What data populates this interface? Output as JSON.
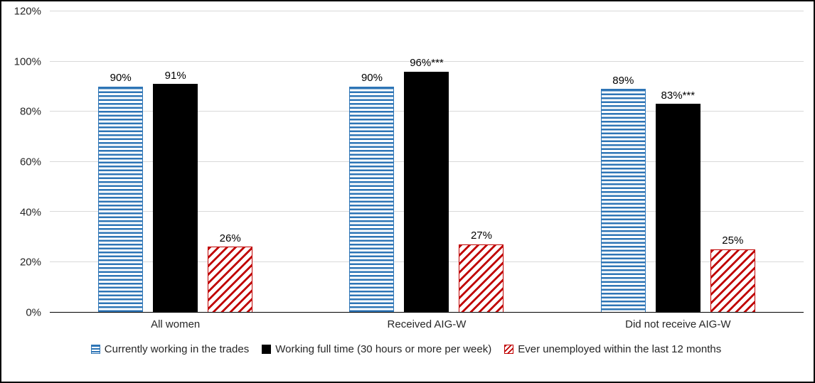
{
  "chart_data": {
    "type": "bar",
    "categories": [
      "All women",
      "Received AIG-W",
      "Did not receive AIG-W"
    ],
    "series": [
      {
        "name": "Currently working in the trades",
        "values": [
          90,
          90,
          89
        ],
        "labels": [
          "90%",
          "90%",
          "89%"
        ],
        "style": "blue-stripes",
        "color": "#2E75B6",
        "pattern": "horizontal-stripes"
      },
      {
        "name": "Working full time (30 hours or more per week)",
        "values": [
          91,
          96,
          83
        ],
        "labels": [
          "91%",
          "96%***",
          "83%***"
        ],
        "style": "black-solid",
        "color": "#000000",
        "pattern": "solid"
      },
      {
        "name": "Ever unemployed within the last 12 months",
        "values": [
          26,
          27,
          25
        ],
        "labels": [
          "26%",
          "27%",
          "25%"
        ],
        "style": "red-hatch",
        "color": "#C00000",
        "pattern": "diagonal-hatch"
      }
    ],
    "xlabel": "",
    "ylabel": "",
    "ylim": [
      0,
      120
    ],
    "yticks": [
      0,
      20,
      40,
      60,
      80,
      100,
      120
    ],
    "ytick_labels": [
      "0%",
      "20%",
      "40%",
      "60%",
      "80%",
      "100%",
      "120%"
    ],
    "grid": "horizontal",
    "gridline_color": "#d9d9d9",
    "legend_position": "bottom"
  }
}
